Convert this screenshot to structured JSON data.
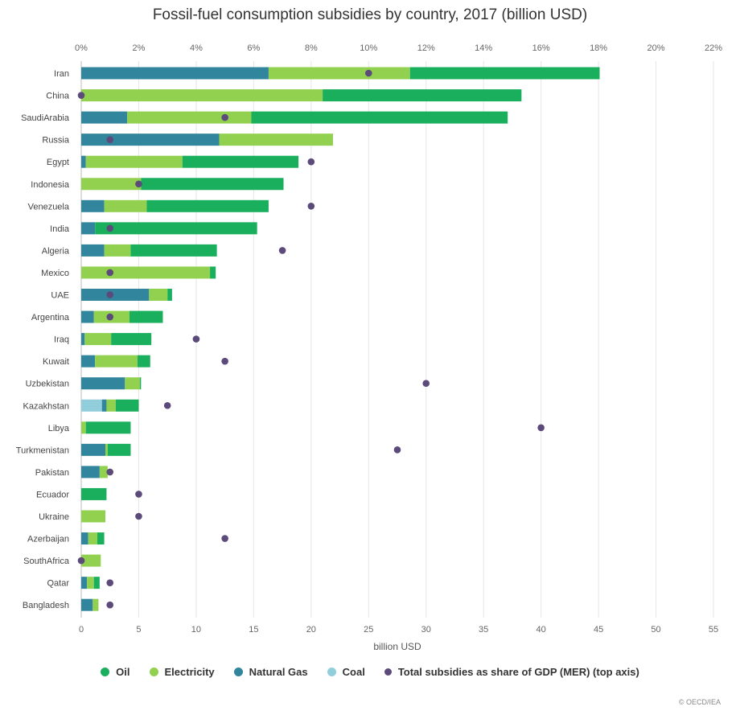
{
  "chart_data": {
    "type": "bar",
    "orientation": "horizontal",
    "stacked": true,
    "title": "Fossil-fuel consumption subsidies by country, 2017 (billion USD)",
    "xlabel": "billion USD",
    "xlim": [
      0,
      55
    ],
    "x_ticks": [
      0,
      5,
      10,
      15,
      20,
      25,
      30,
      35,
      40,
      45,
      50,
      55
    ],
    "top_axis_ticks": [
      "0%",
      "2%",
      "4%",
      "6%",
      "8%",
      "10%",
      "12%",
      "14%",
      "16%",
      "18%",
      "20%",
      "22%"
    ],
    "top_xlim": [
      0,
      22
    ],
    "categories": [
      "Iran",
      "China",
      "SaudiArabia",
      "Russia",
      "Egypt",
      "Indonesia",
      "Venezuela",
      "India",
      "Algeria",
      "Mexico",
      "UAE",
      "Argentina",
      "Iraq",
      "Kuwait",
      "Uzbekistan",
      "Kazakhstan",
      "Libya",
      "Turkmenistan",
      "Pakistan",
      "Ecuador",
      "Ukraine",
      "Azerbaijan",
      "SouthAfrica",
      "Qatar",
      "Bangladesh"
    ],
    "series": [
      {
        "name": "Coal",
        "color": "#92cddc",
        "values": [
          0,
          0,
          0,
          0,
          0,
          0,
          0,
          0,
          0,
          0,
          0,
          0,
          0,
          0,
          0,
          1.8,
          0,
          0,
          0,
          0,
          0,
          0,
          0,
          0,
          0
        ]
      },
      {
        "name": "Natural Gas",
        "color": "#31859c",
        "values": [
          16.3,
          0,
          4.0,
          12.0,
          0.4,
          0,
          2.0,
          1.2,
          2.0,
          0,
          5.9,
          1.1,
          0.3,
          1.2,
          3.8,
          0.4,
          0,
          2.1,
          1.6,
          0,
          0,
          0.6,
          0,
          0.5,
          1.0
        ]
      },
      {
        "name": "Electricity",
        "color": "#92d050",
        "values": [
          12.3,
          21.0,
          10.8,
          9.9,
          8.4,
          5.2,
          3.7,
          0,
          2.3,
          11.2,
          1.6,
          3.1,
          2.3,
          3.7,
          1.3,
          0.8,
          0.4,
          0.2,
          0.7,
          0,
          2.1,
          0.8,
          1.7,
          0.6,
          0.5
        ]
      },
      {
        "name": "Oil",
        "color": "#1aaf5d",
        "values": [
          16.5,
          17.3,
          22.3,
          0,
          10.1,
          12.4,
          10.6,
          14.1,
          7.5,
          0.5,
          0.4,
          2.9,
          3.5,
          1.1,
          0.1,
          2.0,
          3.9,
          2.0,
          0,
          2.2,
          0,
          0.6,
          0,
          0.5,
          0
        ]
      }
    ],
    "gdp_share_series": {
      "name": "Total subsidies as share of GDP (MER) (top axis)",
      "color": "#5b4a7a",
      "unit": "%",
      "values": [
        10.0,
        0,
        5.0,
        1.0,
        8.0,
        2.0,
        8.0,
        1.0,
        7.0,
        1.0,
        1.0,
        1.0,
        4.0,
        5.0,
        12.0,
        3.0,
        16.0,
        11.0,
        1.0,
        2.0,
        2.0,
        5.0,
        0,
        1.0,
        1.0
      ]
    },
    "legend": [
      "Oil",
      "Electricity",
      "Natural Gas",
      "Coal",
      "Total subsidies as share of GDP (MER) (top axis)"
    ],
    "legend_position": "bottom",
    "grid": true
  },
  "credit": "© OECD/IEA"
}
